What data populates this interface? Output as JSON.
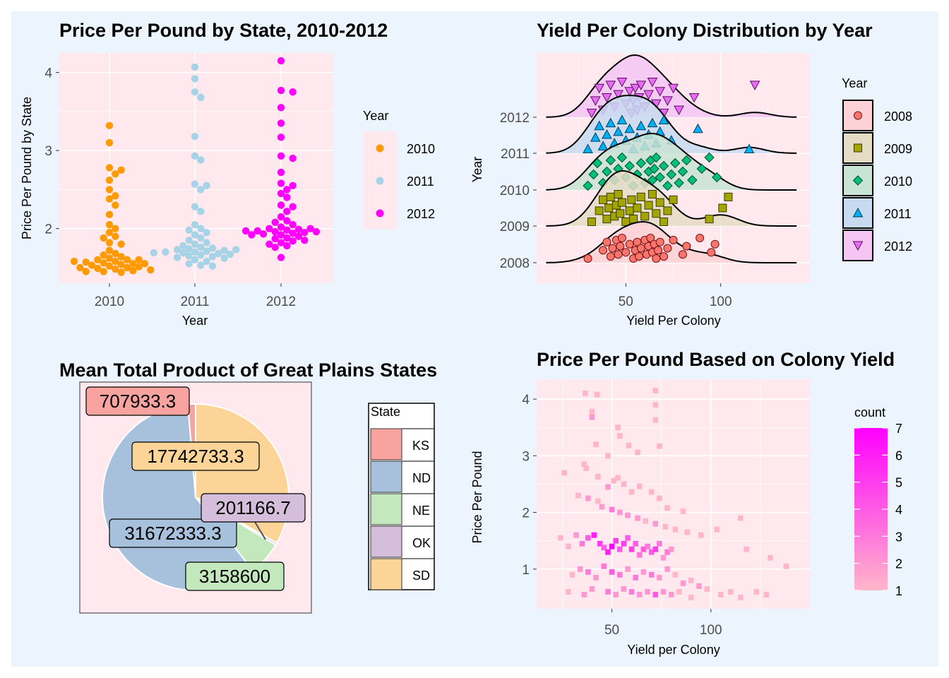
{
  "figure": {
    "background": "#ecf5fe",
    "panel_background": "#ffe8ee"
  },
  "chart_data": [
    {
      "id": "price_by_state",
      "type": "scatter",
      "title": "Price Per Pound by State, 2010-2012",
      "xlabel": "Year",
      "ylabel": "Price Per Pound by State",
      "categories": [
        "2010",
        "2011",
        "2012"
      ],
      "ylim": [
        1.3,
        4.25
      ],
      "yticks": [
        2,
        3,
        4
      ],
      "legend": {
        "title": "Year",
        "position": "right",
        "labels": [
          "2010",
          "2011",
          "2012"
        ],
        "colors": [
          "#ff9a00",
          "#a6d3e6",
          "#ff00ff"
        ]
      },
      "series": [
        {
          "name": "2010",
          "values": [
            3.32,
            3.1,
            2.78,
            2.75,
            2.7,
            2.62,
            2.5,
            2.42,
            2.38,
            2.3,
            2.18,
            2.05,
            2.0,
            1.95,
            1.9,
            1.88,
            1.82,
            1.8,
            1.72,
            1.68,
            1.66,
            1.64,
            1.62,
            1.6,
            1.6,
            1.58,
            1.57,
            1.56,
            1.55,
            1.55,
            1.54,
            1.53,
            1.52,
            1.51,
            1.5,
            1.5,
            1.49,
            1.48,
            1.47,
            1.46,
            1.45,
            1.45,
            1.44,
            1.6,
            1.58
          ]
        },
        {
          "name": "2011",
          "values": [
            4.07,
            3.92,
            3.75,
            3.68,
            3.18,
            2.93,
            2.88,
            2.57,
            2.55,
            2.5,
            2.28,
            2.22,
            2.05,
            2.0,
            1.98,
            1.95,
            1.92,
            1.88,
            1.85,
            1.82,
            1.8,
            1.78,
            1.76,
            1.75,
            1.74,
            1.73,
            1.72,
            1.71,
            1.7,
            1.7,
            1.69,
            1.68,
            1.67,
            1.66,
            1.65,
            1.64,
            1.63,
            1.62,
            1.6,
            1.58,
            1.55,
            1.53,
            1.52,
            1.73,
            1.69
          ]
        },
        {
          "name": "2012",
          "values": [
            4.15,
            3.77,
            3.75,
            3.55,
            3.35,
            3.17,
            2.93,
            2.9,
            2.72,
            2.58,
            2.55,
            2.5,
            2.45,
            2.4,
            2.3,
            2.28,
            2.22,
            2.15,
            2.1,
            2.08,
            2.05,
            2.02,
            2.0,
            1.99,
            1.98,
            1.97,
            1.96,
            1.95,
            1.94,
            1.93,
            1.92,
            1.9,
            1.88,
            1.87,
            1.85,
            1.84,
            1.82,
            1.8,
            1.78,
            1.76,
            1.63,
            2.0,
            1.97,
            1.96,
            1.92
          ]
        }
      ]
    },
    {
      "id": "yield_ridgeline",
      "type": "area",
      "title": "Yield Per Colony Distribution by Year",
      "xlabel": "Yield Per Colony",
      "ylabel": "Year",
      "xlim": [
        3,
        147
      ],
      "xticks": [
        50,
        100
      ],
      "yticks": [
        "2008",
        "2009",
        "2010",
        "2011",
        "2012"
      ],
      "legend": {
        "title": "Year",
        "position": "right",
        "labels": [
          "2008",
          "2009",
          "2010",
          "2011",
          "2012"
        ],
        "colors": [
          "#f8766d",
          "#a3a500",
          "#00bf7d",
          "#00b0f6",
          "#e76bf3"
        ],
        "shapes": [
          "circle",
          "square",
          "diamond",
          "triangle-up",
          "triangle-down"
        ]
      },
      "series": [
        {
          "name": "2008",
          "values": [
            30,
            38,
            40,
            42,
            43,
            45,
            46,
            47,
            48,
            50,
            52,
            54,
            55,
            56,
            57,
            58,
            60,
            61,
            62,
            63,
            64,
            65,
            66,
            67,
            68,
            70,
            72,
            75,
            80,
            82,
            89,
            95,
            97
          ]
        },
        {
          "name": "2009",
          "values": [
            32,
            36,
            38,
            40,
            41,
            42,
            44,
            45,
            46,
            47,
            48,
            50,
            52,
            53,
            54,
            56,
            58,
            60,
            62,
            64,
            66,
            68,
            70,
            72,
            75,
            94,
            101,
            104
          ]
        },
        {
          "name": "2010",
          "values": [
            30,
            33,
            35,
            38,
            40,
            42,
            44,
            46,
            48,
            50,
            52,
            54,
            56,
            58,
            60,
            62,
            63,
            64,
            65,
            66,
            68,
            70,
            72,
            74,
            76,
            78,
            80,
            82,
            85,
            90,
            94,
            98
          ]
        },
        {
          "name": "2011",
          "values": [
            30,
            34,
            36,
            38,
            40,
            42,
            44,
            46,
            48,
            50,
            52,
            54,
            56,
            58,
            60,
            62,
            64,
            66,
            68,
            70,
            74,
            88,
            115
          ]
        },
        {
          "name": "2012",
          "values": [
            32,
            34,
            36,
            38,
            40,
            42,
            44,
            46,
            48,
            50,
            52,
            53,
            54,
            55,
            56,
            57,
            58,
            60,
            62,
            64,
            66,
            68,
            70,
            72,
            75,
            78,
            86,
            118
          ]
        }
      ]
    },
    {
      "id": "great_plains_pie",
      "type": "pie",
      "title": "Mean Total Product of Great Plains States",
      "legend": {
        "title": "State",
        "position": "right"
      },
      "slices": [
        {
          "label": "KS",
          "value": 707933.3,
          "text": "707933.3",
          "color": "#f8a3a0"
        },
        {
          "label": "ND",
          "value": 31672333.3,
          "text": "31672333.3",
          "color": "#a7c0dc"
        },
        {
          "label": "NE",
          "value": 3158600,
          "text": "3158600",
          "color": "#c4e8bd"
        },
        {
          "label": "OK",
          "value": 201166.7,
          "text": "201166.7",
          "color": "#d4bedc"
        },
        {
          "label": "SD",
          "value": 17742733.3,
          "text": "17742733.3",
          "color": "#fdd497"
        }
      ]
    },
    {
      "id": "price_vs_yield_heatmap",
      "type": "heatmap",
      "title": "Price Per Pound Based on Colony Yield",
      "xlabel": "Yield per Colony",
      "ylabel": "Price Per Pound",
      "xlim": [
        12,
        150
      ],
      "ylim": [
        0.3,
        4.35
      ],
      "xticks": [
        50,
        100
      ],
      "yticks": [
        1,
        2,
        3,
        4
      ],
      "legend": {
        "title": "count",
        "position": "right",
        "min": 1,
        "max": 7,
        "ticks": [
          1,
          2,
          3,
          4,
          5,
          6,
          7
        ],
        "low_color": "#ffb6c9",
        "high_color": "#ff00ff"
      },
      "bins": [
        [
          36.5,
          4.1,
          1
        ],
        [
          42.5,
          4.08,
          1
        ],
        [
          53,
          3.5,
          1
        ],
        [
          54,
          3.35,
          1
        ],
        [
          58.5,
          3.18,
          1
        ],
        [
          63,
          3.06,
          1
        ],
        [
          72,
          4.15,
          1
        ],
        [
          72,
          3.9,
          1
        ],
        [
          72,
          3.63,
          1
        ],
        [
          74,
          3.17,
          1
        ],
        [
          40,
          3.78,
          1
        ],
        [
          40,
          3.68,
          2
        ],
        [
          42,
          3.2,
          1
        ],
        [
          48,
          3.0,
          1
        ],
        [
          36,
          2.85,
          1
        ],
        [
          37,
          2.78,
          1
        ],
        [
          43,
          2.63,
          1
        ],
        [
          26,
          2.7,
          1
        ],
        [
          48,
          2.45,
          2
        ],
        [
          51,
          2.56,
          1
        ],
        [
          53,
          2.61,
          1
        ],
        [
          56,
          2.5,
          1
        ],
        [
          60,
          2.36,
          1
        ],
        [
          64,
          2.46,
          1
        ],
        [
          70,
          2.36,
          1
        ],
        [
          74,
          2.25,
          1
        ],
        [
          78,
          2.08,
          1
        ],
        [
          86,
          2.02,
          1
        ],
        [
          33,
          2.3,
          1
        ],
        [
          38,
          2.25,
          2
        ],
        [
          43,
          2.2,
          1
        ],
        [
          45,
          2.1,
          2
        ],
        [
          50,
          2.05,
          3
        ],
        [
          54,
          2.0,
          2
        ],
        [
          58,
          1.95,
          2
        ],
        [
          63,
          1.9,
          2
        ],
        [
          67,
          1.85,
          1
        ],
        [
          72,
          1.8,
          2
        ],
        [
          77,
          1.75,
          1
        ],
        [
          82,
          1.7,
          1
        ],
        [
          88,
          1.65,
          1
        ],
        [
          95,
          1.6,
          1
        ],
        [
          103,
          1.7,
          1
        ],
        [
          115,
          1.9,
          1
        ],
        [
          118,
          1.35,
          1
        ],
        [
          130,
          1.2,
          1
        ],
        [
          138,
          1.05,
          1
        ],
        [
          24,
          1.55,
          1
        ],
        [
          28,
          1.4,
          1
        ],
        [
          32,
          1.6,
          2
        ],
        [
          35,
          1.45,
          3
        ],
        [
          38,
          1.55,
          4
        ],
        [
          41,
          1.6,
          6
        ],
        [
          44,
          1.45,
          5
        ],
        [
          46,
          1.38,
          4
        ],
        [
          48,
          1.3,
          6
        ],
        [
          50,
          1.4,
          7
        ],
        [
          52,
          1.5,
          5
        ],
        [
          54,
          1.35,
          4
        ],
        [
          56,
          1.45,
          5
        ],
        [
          58,
          1.55,
          4
        ],
        [
          60,
          1.35,
          5
        ],
        [
          62,
          1.45,
          4
        ],
        [
          64,
          1.25,
          3
        ],
        [
          66,
          1.35,
          4
        ],
        [
          68,
          1.4,
          3
        ],
        [
          70,
          1.3,
          4
        ],
        [
          72,
          1.35,
          5
        ],
        [
          74,
          1.45,
          3
        ],
        [
          76,
          1.2,
          2
        ],
        [
          78,
          1.3,
          3
        ],
        [
          80,
          1.35,
          2
        ],
        [
          30,
          0.9,
          1
        ],
        [
          34,
          1.0,
          2
        ],
        [
          38,
          0.95,
          3
        ],
        [
          42,
          0.85,
          2
        ],
        [
          46,
          1.05,
          3
        ],
        [
          50,
          0.95,
          4
        ],
        [
          54,
          0.9,
          3
        ],
        [
          58,
          1.0,
          2
        ],
        [
          62,
          0.85,
          3
        ],
        [
          66,
          0.95,
          2
        ],
        [
          70,
          0.9,
          3
        ],
        [
          74,
          0.85,
          2
        ],
        [
          78,
          1.0,
          2
        ],
        [
          82,
          0.9,
          1
        ],
        [
          86,
          0.75,
          2
        ],
        [
          90,
          0.8,
          1
        ],
        [
          94,
          0.7,
          2
        ],
        [
          98,
          0.65,
          1
        ],
        [
          105,
          0.55,
          1
        ],
        [
          110,
          0.6,
          1
        ],
        [
          115,
          0.5,
          1
        ],
        [
          123,
          0.6,
          1
        ],
        [
          128,
          0.55,
          1
        ],
        [
          28,
          0.6,
          1
        ],
        [
          36,
          0.55,
          2
        ],
        [
          40,
          0.65,
          2
        ],
        [
          48,
          0.6,
          3
        ],
        [
          52,
          0.55,
          2
        ],
        [
          56,
          0.65,
          2
        ],
        [
          60,
          0.6,
          3
        ],
        [
          64,
          0.55,
          2
        ],
        [
          68,
          0.6,
          2
        ],
        [
          72,
          0.55,
          4
        ],
        [
          76,
          0.6,
          2
        ],
        [
          80,
          0.55,
          2
        ],
        [
          84,
          0.6,
          1
        ],
        [
          90,
          0.5,
          1
        ]
      ]
    }
  ]
}
